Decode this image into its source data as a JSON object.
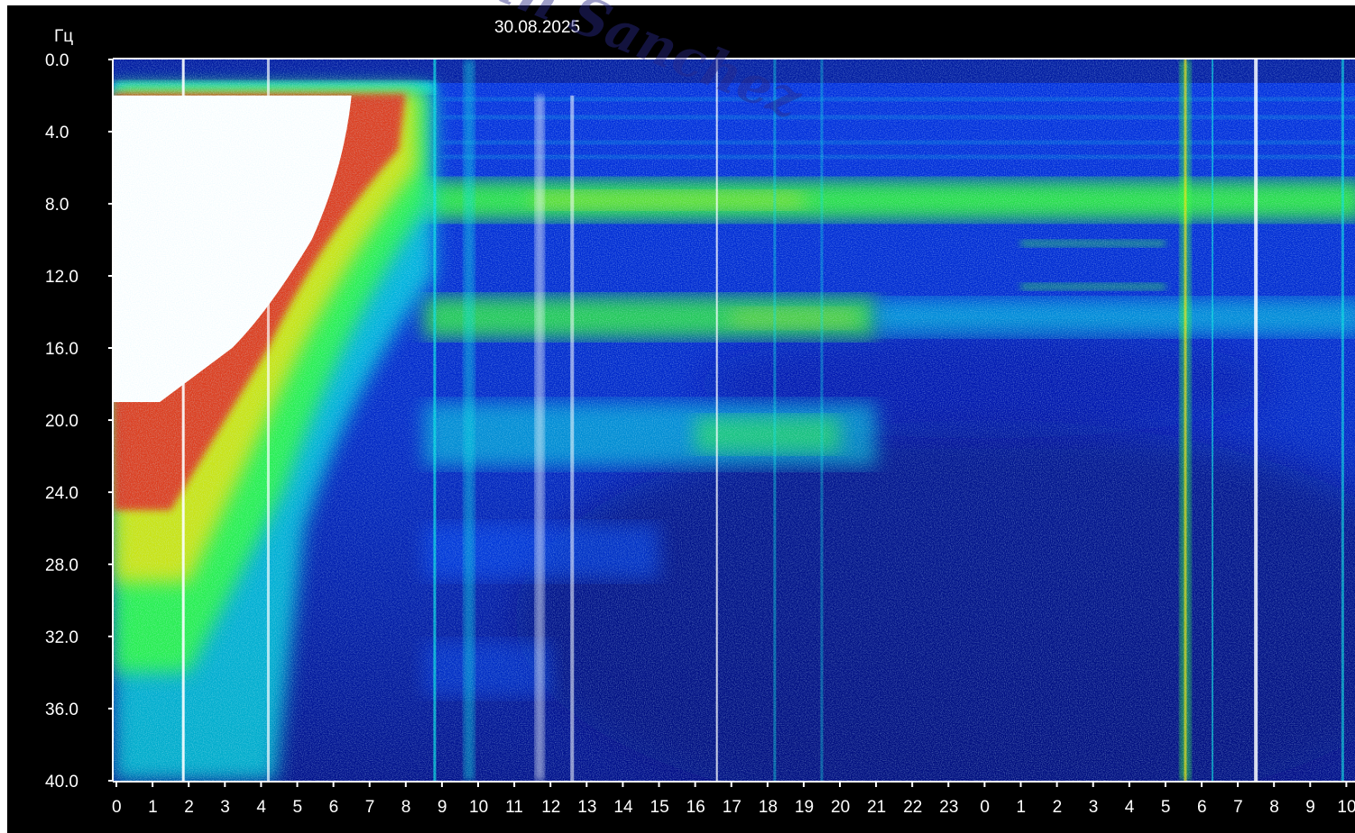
{
  "chart_data": {
    "type": "heatmap",
    "title": "30.08.2025",
    "ylabel": "Гц",
    "xlabel": "",
    "ylim": [
      0,
      40
    ],
    "y_ticks": [
      "0.0",
      "4.0",
      "8.0",
      "12.0",
      "16.0",
      "20.0",
      "24.0",
      "28.0",
      "32.0",
      "36.0",
      "40.0"
    ],
    "x_ticks": [
      "0",
      "1",
      "2",
      "3",
      "4",
      "5",
      "6",
      "7",
      "8",
      "9",
      "10",
      "11",
      "12",
      "13",
      "14",
      "15",
      "16",
      "17",
      "18",
      "19",
      "20",
      "21",
      "22",
      "23",
      "0",
      "1",
      "2",
      "3",
      "4",
      "5",
      "6",
      "7",
      "8",
      "9",
      "10"
    ],
    "grid": false,
    "colors": {
      "background": "#000000",
      "low": "#0010b0",
      "mid_low": "#0050ff",
      "mid": "#00e0e0",
      "mid_high": "#30ff30",
      "high": "#ffe000",
      "very_high": "#e02020",
      "saturated": "#ffffff"
    },
    "resonance_bands_hz": [
      7.8,
      14.3,
      20.8,
      27.3,
      33.8
    ],
    "watermark": "Juan Sanchez"
  }
}
